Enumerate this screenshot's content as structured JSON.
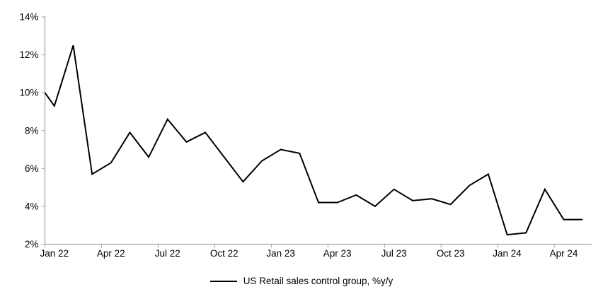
{
  "chart_data": {
    "type": "line",
    "title": "",
    "xlabel": "",
    "ylabel": "",
    "grid": false,
    "legend_position": "bottom-center",
    "legend": [
      "US Retail sales control group, %y/y"
    ],
    "y_axis": {
      "ylim": [
        2,
        14
      ],
      "tick_step": 2,
      "tick_labels": [
        "2%",
        "4%",
        "6%",
        "8%",
        "10%",
        "12%",
        "14%"
      ]
    },
    "x_axis": {
      "tick_every_n_categories": 3,
      "tick_labels": [
        "Jan 22",
        "Apr 22",
        "Jul 22",
        "Oct 22",
        "Jan 23",
        "Apr 23",
        "Jul 23",
        "Oct 23",
        "Jan 24",
        "Apr 24"
      ]
    },
    "categories": [
      "Jan 22",
      "Feb 22",
      "Mar 22",
      "Apr 22",
      "May 22",
      "Jun 22",
      "Jul 22",
      "Aug 22",
      "Sep 22",
      "Oct 22",
      "Nov 22",
      "Dec 22",
      "Jan 23",
      "Feb 23",
      "Mar 23",
      "Apr 23",
      "May 23",
      "Jun 23",
      "Jul 23",
      "Aug 23",
      "Sep 23",
      "Oct 23",
      "Nov 23",
      "Dec 23",
      "Jan 24",
      "Feb 24",
      "Mar 24",
      "Apr 24",
      "May 24"
    ],
    "series": [
      {
        "name": "US Retail sales control group, %y/y",
        "color": "#000000",
        "stroke_width": 2,
        "values": [
          9.3,
          12.5,
          5.7,
          6.3,
          7.9,
          6.6,
          8.6,
          7.4,
          7.9,
          6.6,
          5.3,
          6.4,
          7.0,
          6.8,
          4.2,
          4.2,
          4.6,
          4.0,
          4.9,
          4.3,
          4.4,
          4.1,
          5.1,
          5.7,
          2.5,
          2.6,
          4.9,
          3.3,
          3.3
        ]
      }
    ],
    "lead_in_from_left_edge": {
      "note": "line enters the plot at the left axis, clipped from a prior off-chart point",
      "edge_value": 10.0
    },
    "colors": {
      "axis": "#a6a6a6",
      "text": "#000000",
      "background": "#ffffff"
    }
  }
}
